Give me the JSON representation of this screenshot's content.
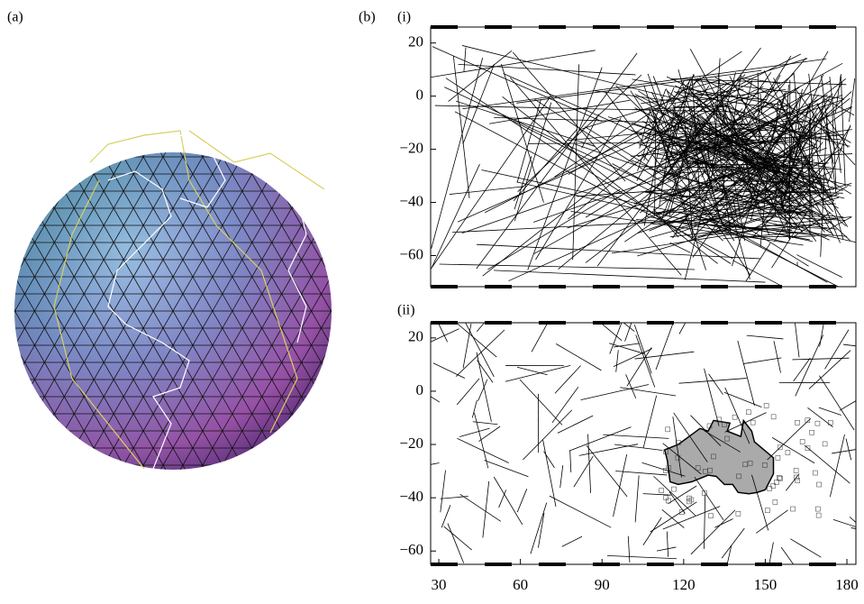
{
  "panel_a": {
    "label": "(a)"
  },
  "panel_b": {
    "label": "(b)",
    "maps": [
      {
        "label": "(i)",
        "xlim": [
          27,
          183.3
        ],
        "ylim": [
          -71.7,
          26
        ],
        "yticks": [
          20,
          0,
          {
            "value": -20,
            "label": "−20"
          },
          {
            "value": -40,
            "label": "−40"
          },
          {
            "value": -60,
            "label": "−60"
          }
        ]
      },
      {
        "label": "(ii)",
        "xlim": [
          27,
          183.3
        ],
        "ylim": [
          -65,
          25.7
        ],
        "yticks": [
          20,
          0,
          {
            "value": -20,
            "label": "−20"
          },
          {
            "value": -40,
            "label": "−40"
          },
          {
            "value": -60,
            "label": "−60"
          }
        ],
        "xticks": [
          30,
          60,
          90,
          120,
          150,
          180
        ]
      }
    ]
  }
}
